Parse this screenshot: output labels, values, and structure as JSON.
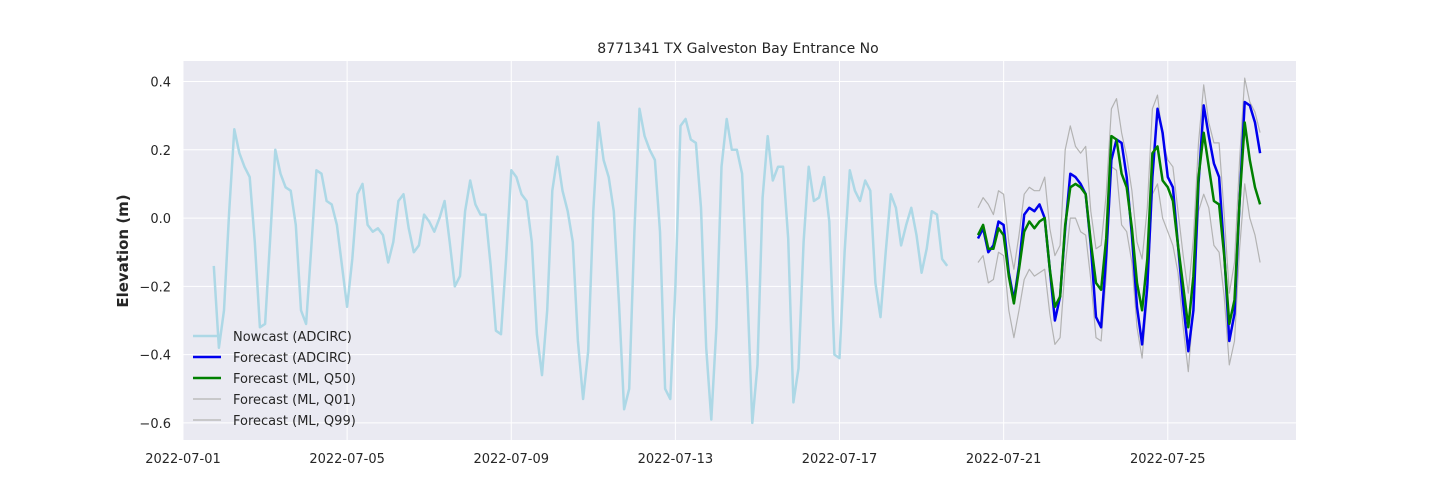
{
  "chart_data": {
    "type": "line",
    "title": "8771341 TX Galveston Bay Entrance No",
    "xlabel": "",
    "ylabel": "Elevation (m)",
    "xlim": [
      "2022-07-01T00:00",
      "2022-07-28T03:00"
    ],
    "ylim": [
      -0.65,
      0.46
    ],
    "grid": true,
    "legend_position": "lower-left",
    "x_ticks": [
      "2022-07-01",
      "2022-07-05",
      "2022-07-09",
      "2022-07-13",
      "2022-07-17",
      "2022-07-21",
      "2022-07-25"
    ],
    "y_ticks": [
      -0.6,
      -0.4,
      -0.2,
      0.0,
      0.2,
      0.4
    ],
    "y_tick_labels": [
      "−0.6",
      "−0.4",
      "−0.2",
      "0.0",
      "0.2",
      "0.4"
    ],
    "series": [
      {
        "name": "Nowcast (ADCIRC)",
        "color": "#add8e6",
        "x_start": "2022-07-01T18:00",
        "interval_hours": 3,
        "values": [
          -0.14,
          -0.38,
          -0.27,
          0.02,
          0.26,
          0.19,
          0.15,
          0.12,
          -0.07,
          -0.32,
          -0.31,
          -0.06,
          0.2,
          0.13,
          0.09,
          0.08,
          -0.02,
          -0.27,
          -0.31,
          -0.09,
          0.14,
          0.13,
          0.05,
          0.04,
          -0.02,
          -0.14,
          -0.26,
          -0.12,
          0.07,
          0.1,
          -0.02,
          -0.04,
          -0.03,
          -0.05,
          -0.13,
          -0.07,
          0.05,
          0.07,
          -0.03,
          -0.1,
          -0.08,
          0.01,
          -0.01,
          -0.04,
          0.0,
          0.05,
          -0.07,
          -0.2,
          -0.17,
          0.02,
          0.11,
          0.04,
          0.01,
          0.01,
          -0.14,
          -0.33,
          -0.34,
          -0.12,
          0.14,
          0.12,
          0.07,
          0.05,
          -0.07,
          -0.34,
          -0.46,
          -0.27,
          0.08,
          0.18,
          0.08,
          0.02,
          -0.07,
          -0.36,
          -0.53,
          -0.39,
          0.02,
          0.28,
          0.17,
          0.12,
          0.02,
          -0.25,
          -0.56,
          -0.5,
          -0.04,
          0.32,
          0.24,
          0.2,
          0.17,
          -0.04,
          -0.5,
          -0.53,
          -0.2,
          0.27,
          0.29,
          0.23,
          0.22,
          0.03,
          -0.38,
          -0.59,
          -0.32,
          0.15,
          0.29,
          0.2,
          0.2,
          0.13,
          -0.2,
          -0.6,
          -0.43,
          0.06,
          0.24,
          0.11,
          0.15,
          0.15,
          -0.06,
          -0.54,
          -0.44,
          -0.07,
          0.15,
          0.05,
          0.06,
          0.12,
          -0.01,
          -0.4,
          -0.41,
          -0.1,
          0.14,
          0.08,
          0.05,
          0.11,
          0.08,
          -0.19,
          -0.29,
          -0.1,
          0.07,
          0.03,
          -0.08,
          -0.02,
          0.03,
          -0.05,
          -0.16,
          -0.09,
          0.02,
          0.01,
          -0.12,
          -0.14
        ]
      },
      {
        "name": "Forecast (ADCIRC)",
        "color": "#0000ee",
        "x_start": "2022-07-20T09:00",
        "interval_hours": 3,
        "values": [
          -0.06,
          -0.03,
          -0.1,
          -0.08,
          -0.01,
          -0.02,
          -0.16,
          -0.24,
          -0.14,
          0.01,
          0.03,
          0.02,
          0.04,
          0.0,
          -0.15,
          -0.3,
          -0.23,
          -0.03,
          0.13,
          0.12,
          0.1,
          0.07,
          -0.08,
          -0.29,
          -0.32,
          -0.11,
          0.17,
          0.23,
          0.22,
          0.12,
          -0.05,
          -0.26,
          -0.37,
          -0.2,
          0.12,
          0.32,
          0.25,
          0.12,
          0.09,
          -0.08,
          -0.25,
          -0.39,
          -0.27,
          0.1,
          0.33,
          0.24,
          0.16,
          0.12,
          -0.1,
          -0.36,
          -0.28,
          0.05,
          0.34,
          0.33,
          0.28,
          0.19
        ]
      },
      {
        "name": "Forecast (ML, Q50)",
        "color": "#008000",
        "x_start": "2022-07-20T09:00",
        "interval_hours": 3,
        "values": [
          -0.05,
          -0.02,
          -0.09,
          -0.09,
          -0.03,
          -0.05,
          -0.17,
          -0.25,
          -0.15,
          -0.04,
          -0.01,
          -0.03,
          -0.01,
          0.0,
          -0.15,
          -0.26,
          -0.23,
          -0.02,
          0.09,
          0.1,
          0.09,
          0.07,
          -0.07,
          -0.19,
          -0.21,
          -0.06,
          0.24,
          0.23,
          0.13,
          0.09,
          -0.03,
          -0.19,
          -0.27,
          -0.12,
          0.19,
          0.21,
          0.11,
          0.09,
          0.05,
          -0.08,
          -0.2,
          -0.32,
          -0.17,
          0.12,
          0.25,
          0.15,
          0.05,
          0.04,
          -0.11,
          -0.31,
          -0.24,
          0.05,
          0.28,
          0.17,
          0.09,
          0.04
        ]
      },
      {
        "name": "Forecast (ML, Q01)",
        "color": "#b3b3b3",
        "x_start": "2022-07-20T09:00",
        "interval_hours": 3,
        "values": [
          -0.13,
          -0.11,
          -0.19,
          -0.18,
          -0.1,
          -0.11,
          -0.27,
          -0.35,
          -0.27,
          -0.18,
          -0.15,
          -0.17,
          -0.16,
          -0.15,
          -0.28,
          -0.37,
          -0.35,
          -0.14,
          0.0,
          0.0,
          -0.04,
          -0.05,
          -0.18,
          -0.35,
          -0.36,
          -0.17,
          0.15,
          0.14,
          -0.02,
          -0.04,
          -0.13,
          -0.32,
          -0.41,
          -0.23,
          0.07,
          0.1,
          0.0,
          -0.04,
          -0.08,
          -0.16,
          -0.32,
          -0.45,
          -0.26,
          0.02,
          0.07,
          0.03,
          -0.08,
          -0.1,
          -0.23,
          -0.43,
          -0.36,
          -0.09,
          0.1,
          0.0,
          -0.05,
          -0.13
        ]
      },
      {
        "name": "Forecast (ML, Q99)",
        "color": "#b3b3b3",
        "x_start": "2022-07-20T09:00",
        "interval_hours": 3,
        "values": [
          0.03,
          0.06,
          0.04,
          0.01,
          0.08,
          0.07,
          -0.07,
          -0.15,
          -0.05,
          0.07,
          0.09,
          0.08,
          0.08,
          0.12,
          -0.03,
          -0.11,
          -0.08,
          0.2,
          0.27,
          0.21,
          0.19,
          0.21,
          0.02,
          -0.09,
          -0.08,
          0.07,
          0.32,
          0.35,
          0.25,
          0.18,
          0.08,
          -0.07,
          -0.12,
          0.03,
          0.32,
          0.36,
          0.23,
          0.17,
          0.15,
          0.02,
          -0.11,
          -0.22,
          -0.06,
          0.22,
          0.39,
          0.28,
          0.22,
          0.22,
          0.01,
          -0.22,
          -0.13,
          0.17,
          0.41,
          0.34,
          0.31,
          0.25
        ]
      }
    ]
  }
}
